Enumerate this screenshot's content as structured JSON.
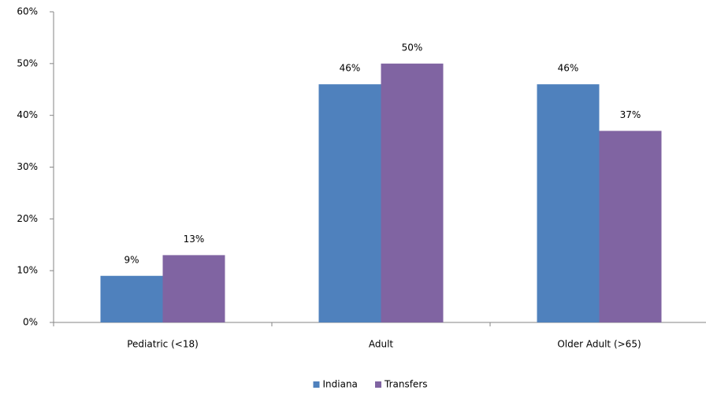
{
  "chart_data": {
    "type": "bar",
    "categories": [
      "Pediatric (<18)",
      "Adult",
      "Older Adult (>65)"
    ],
    "series": [
      {
        "name": "Indiana",
        "color": "#4f81bd",
        "values": [
          9,
          46,
          46
        ],
        "value_labels": [
          "9%",
          "46%",
          "46%"
        ]
      },
      {
        "name": "Transfers",
        "color": "#8064a2",
        "values": [
          13,
          50,
          37
        ],
        "value_labels": [
          "13%",
          "50%",
          "37%"
        ]
      }
    ],
    "ylim": [
      0,
      60
    ],
    "yticks": [
      {
        "value": 0,
        "label": "0%"
      },
      {
        "value": 10,
        "label": "10%"
      },
      {
        "value": 20,
        "label": "20%"
      },
      {
        "value": 30,
        "label": "30%"
      },
      {
        "value": 40,
        "label": "40%"
      },
      {
        "value": 50,
        "label": "50%"
      },
      {
        "value": 60,
        "label": "60%"
      }
    ],
    "grid": false,
    "legend": "bottom"
  }
}
